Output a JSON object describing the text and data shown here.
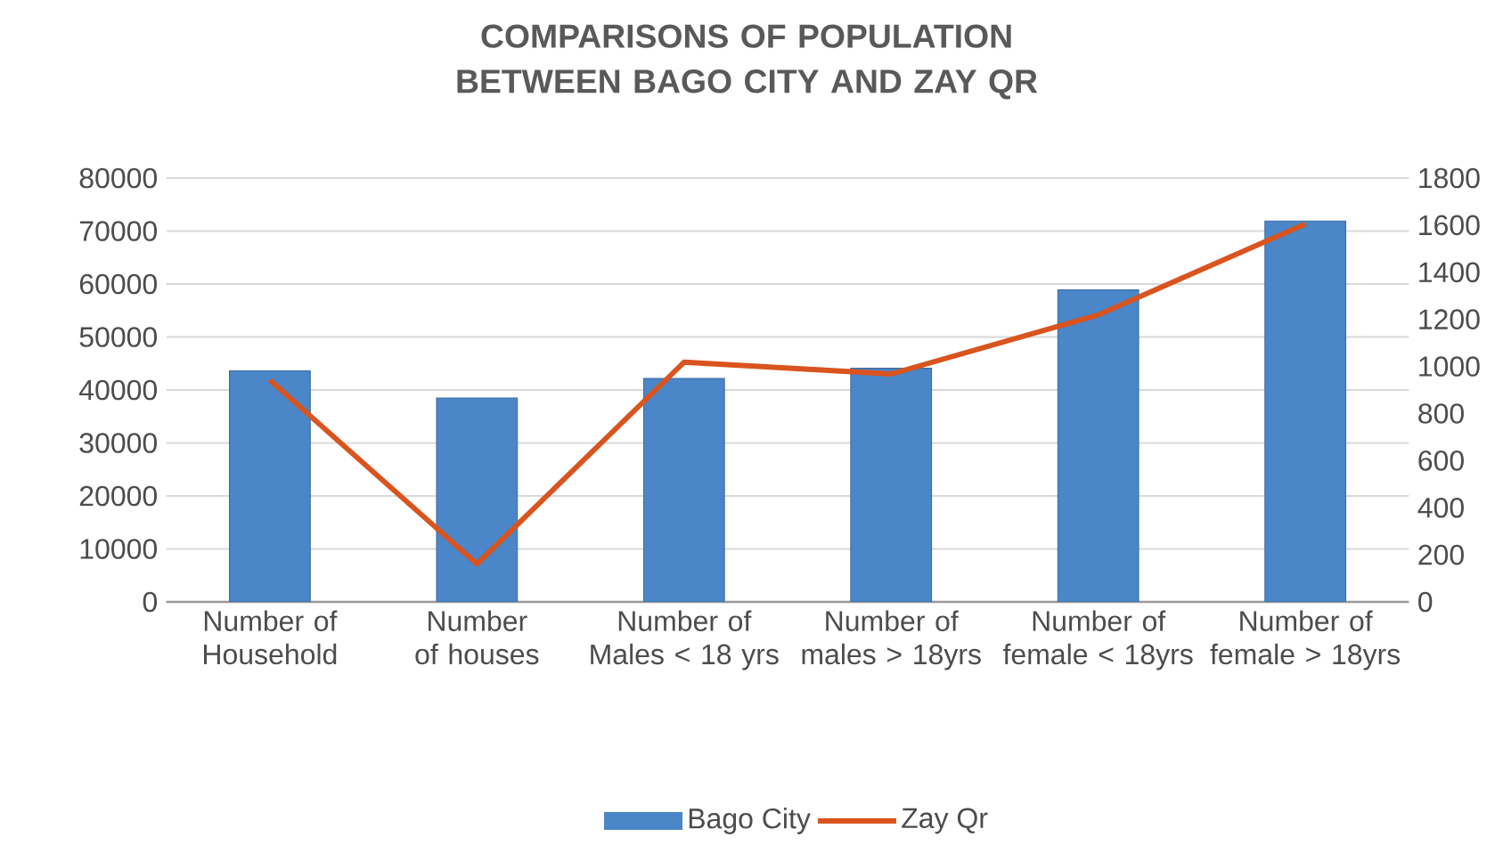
{
  "chart_data": {
    "type": "bar",
    "title": "COMPARISONS OF POPULATION BETWEEN BAGO CITY AND ZAY QR",
    "categories": [
      "Number of Household",
      "Number of houses",
      "Number of Males < 18 yrs",
      "Number of males > 18yrs",
      "Number of female < 18yrs",
      "Number of female > 18yrs"
    ],
    "series": [
      {
        "name": "Bago City",
        "color": "#4a86c8",
        "values": [
          43600,
          38500,
          42200,
          44100,
          58900,
          71900
        ]
      },
      {
        "name": "Zay Qr",
        "type": "line",
        "axis": "y2",
        "color": "#d9541e",
        "values": [
          942,
          161,
          1018,
          968,
          1219,
          1605
        ]
      }
    ],
    "ylim": [
      0,
      80000
    ],
    "yticks": [
      0,
      10000,
      20000,
      30000,
      40000,
      50000,
      60000,
      70000,
      80000
    ],
    "y2lim": [
      0,
      1800
    ],
    "y2ticks": [
      0,
      200,
      400,
      600,
      800,
      1000,
      1200,
      1400,
      1600,
      1800
    ],
    "grid": "y",
    "legend": "bottom"
  }
}
